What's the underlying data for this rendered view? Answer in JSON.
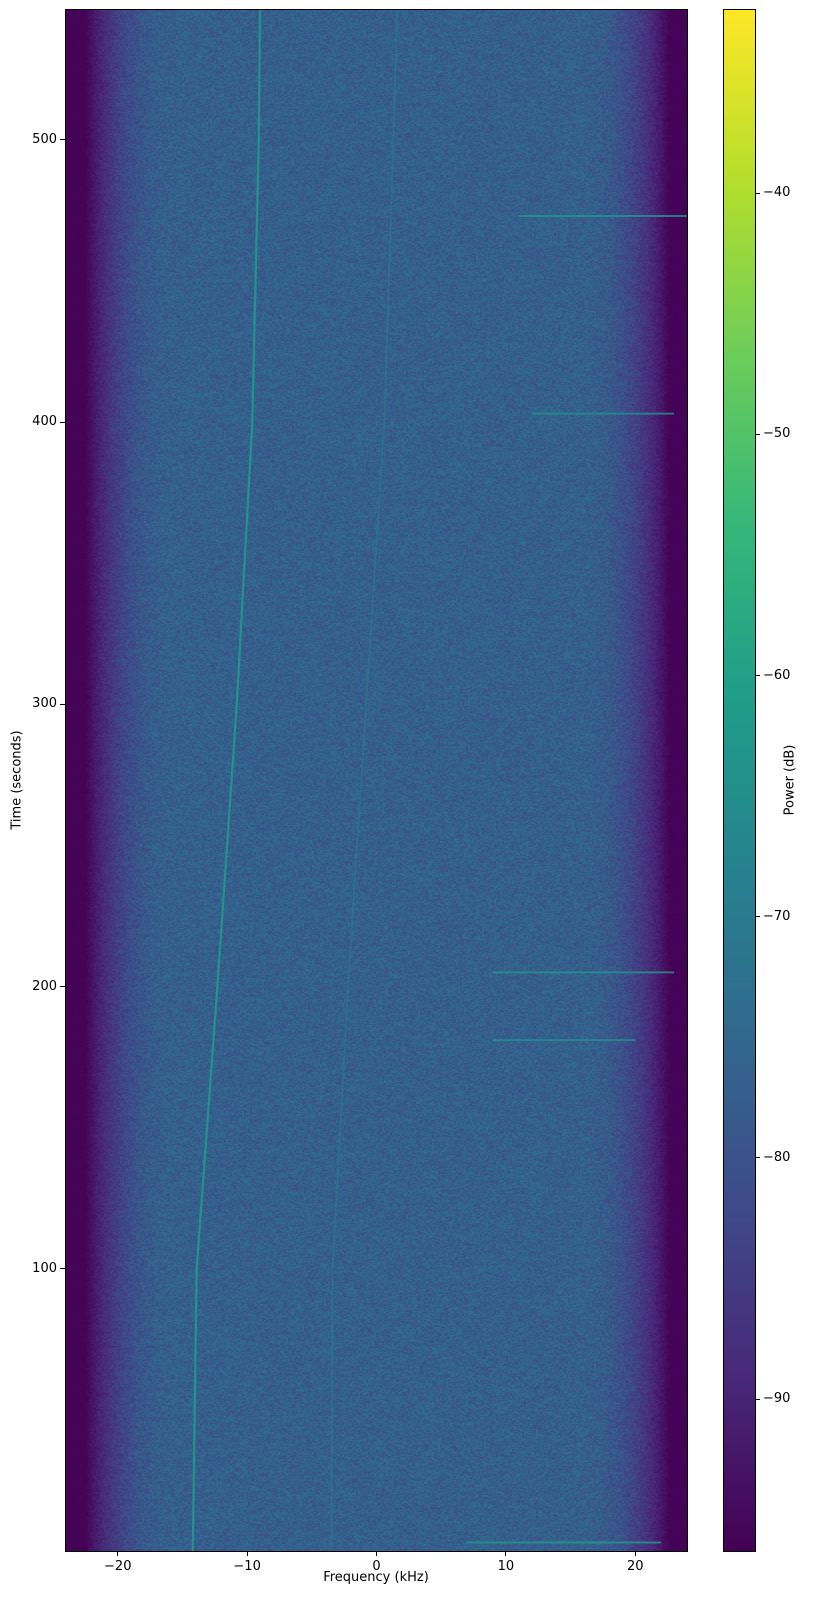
{
  "chart_data": {
    "type": "heatmap",
    "title": "",
    "xlabel": "Frequency (kHz)",
    "ylabel": "Time (seconds)",
    "xlim": [
      -24,
      24
    ],
    "ylim": [
      0,
      546
    ],
    "xticks": [
      -20,
      -10,
      0,
      10,
      20
    ],
    "yticks": [
      100,
      200,
      300,
      400,
      500
    ],
    "colormap": "viridis",
    "colorbar": {
      "label": "Power (dB)",
      "range": [
        -96.3,
        -32.4
      ],
      "ticks": [
        -90,
        -80,
        -70,
        -60,
        -50,
        -40
      ]
    },
    "background_power_db": -77,
    "edge_rolloff_db": -96,
    "tone_tracks": [
      {
        "points": [
          [
            -14.2,
            0
          ],
          [
            -13.9,
            100
          ],
          [
            -12.3,
            200
          ],
          [
            -10.8,
            300
          ],
          [
            -9.6,
            400
          ],
          [
            -9.1,
            500
          ],
          [
            -9.0,
            546
          ]
        ],
        "power_db": -62
      },
      {
        "points": [
          [
            -3.5,
            0
          ],
          [
            -3.4,
            100
          ],
          [
            -2.2,
            200
          ],
          [
            -0.8,
            300
          ],
          [
            0.6,
            400
          ],
          [
            1.3,
            500
          ],
          [
            1.6,
            546
          ]
        ],
        "power_db": -70
      }
    ],
    "bursts": [
      {
        "time": 473,
        "freq_range": [
          11,
          24
        ],
        "power_db": -62
      },
      {
        "time": 403,
        "freq_range": [
          12,
          23
        ],
        "power_db": -64
      },
      {
        "time": 205,
        "freq_range": [
          9,
          23
        ],
        "power_db": -62
      },
      {
        "time": 181,
        "freq_range": [
          9,
          20
        ],
        "power_db": -64
      },
      {
        "time": 3,
        "freq_range": [
          7,
          22
        ],
        "power_db": -62
      }
    ]
  }
}
